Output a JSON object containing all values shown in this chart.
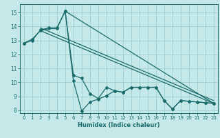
{
  "xlabel": "Humidex (Indice chaleur)",
  "ylabel": "",
  "bg_color": "#c5e8e8",
  "grid_color": "#9dcece",
  "line_color": "#1a6b6b",
  "xlim": [
    -0.5,
    23.5
  ],
  "ylim": [
    7.8,
    15.6
  ],
  "xticks": [
    0,
    1,
    2,
    3,
    4,
    5,
    6,
    7,
    8,
    9,
    10,
    11,
    12,
    13,
    14,
    15,
    16,
    17,
    18,
    19,
    20,
    21,
    22,
    23
  ],
  "yticks": [
    8,
    9,
    10,
    11,
    12,
    13,
    14,
    15
  ],
  "line1_x": [
    0,
    1,
    2,
    3,
    4,
    5,
    6,
    7,
    8,
    9,
    10,
    11,
    12,
    13,
    14,
    15,
    16,
    17,
    18,
    19,
    20,
    21,
    22,
    23
  ],
  "line1_y": [
    12.8,
    13.1,
    13.7,
    13.85,
    13.85,
    15.1,
    10.1,
    7.95,
    8.6,
    8.8,
    9.05,
    9.4,
    9.3,
    9.65,
    9.65,
    9.65,
    9.65,
    8.7,
    8.1,
    8.7,
    8.65,
    8.6,
    8.55,
    8.5
  ],
  "line2_x": [
    0,
    1,
    2,
    3,
    4,
    5,
    6,
    7,
    8,
    9,
    10,
    11,
    12,
    13,
    14,
    15,
    16,
    17,
    18,
    19,
    20,
    21,
    22,
    23
  ],
  "line2_y": [
    12.8,
    13.0,
    13.75,
    13.9,
    13.9,
    15.1,
    10.5,
    10.3,
    9.2,
    8.85,
    9.65,
    9.4,
    9.3,
    9.65,
    9.65,
    9.65,
    9.65,
    8.7,
    8.1,
    8.7,
    8.65,
    8.6,
    8.55,
    8.5
  ],
  "line3_x": [
    2,
    23
  ],
  "line3_y": [
    13.7,
    8.5
  ],
  "line4_x": [
    2,
    23
  ],
  "line4_y": [
    13.9,
    8.7
  ],
  "line5_x": [
    5,
    23
  ],
  "line5_y": [
    15.1,
    8.5
  ]
}
